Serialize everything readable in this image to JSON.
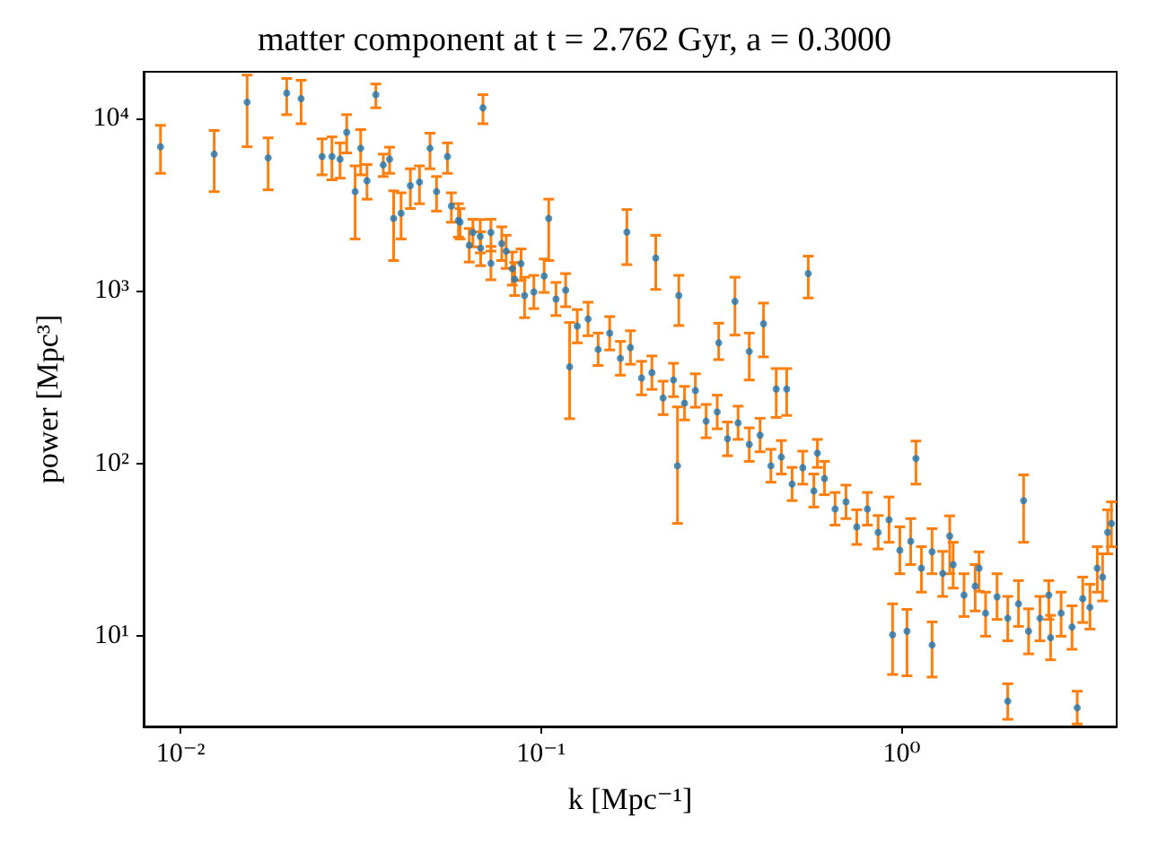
{
  "chart_data": {
    "type": "scatter",
    "title": "matter component at t = 2.762 Gyr, a = 0.3000",
    "xlabel": "k [Mpc⁻¹]",
    "ylabel": "power [Mpc³]",
    "log": "xy",
    "xlim": [
      0.0079,
      3.95
    ],
    "ylim": [
      3,
      18600
    ],
    "xticks": [
      {
        "value": 0.01,
        "label": "10⁻²"
      },
      {
        "value": 0.1,
        "label": "10⁻¹"
      },
      {
        "value": 1,
        "label": "10⁰"
      }
    ],
    "yticks": [
      {
        "value": 10,
        "label": "10¹"
      },
      {
        "value": 100,
        "label": "10²"
      },
      {
        "value": 1000,
        "label": "10³"
      },
      {
        "value": 10000,
        "label": "10⁴"
      }
    ],
    "series": [
      {
        "color": "#1f77b4",
        "x": [
          0.0088,
          0.0124,
          0.0153,
          0.0175,
          0.0197,
          0.0216,
          0.0247,
          0.0263,
          0.0277,
          0.0289,
          0.0305,
          0.0316,
          0.0329,
          0.0348,
          0.0365,
          0.038,
          0.039,
          0.0409,
          0.0434,
          0.046,
          0.0492,
          0.0513,
          0.055,
          0.0564,
          0.0596,
          0.0647,
          0.068,
          0.069,
          0.0726,
          0.08,
          0.088,
          0.09,
          0.105,
          0.12,
          0.173,
          0.208,
          0.239,
          0.241,
          0.311,
          0.345,
          0.378,
          0.414,
          0.449,
          0.48,
          0.551,
          0.584,
          0.944,
          1.035,
          1.096,
          1.215,
          1.36,
          1.64,
          1.97,
          2.18,
          2.56,
          3.07,
          0.059,
          0.0632,
          0.0678,
          0.0726,
          0.0778,
          0.0832,
          0.0845,
          0.0955,
          0.102,
          0.11,
          0.117,
          0.126,
          0.135,
          0.144,
          0.155,
          0.166,
          0.177,
          0.19,
          0.203,
          0.218,
          0.233,
          0.25,
          0.268,
          0.287,
          0.308,
          0.329,
          0.352,
          0.378,
          0.405,
          0.434,
          0.464,
          0.497,
          0.532,
          0.571,
          0.611,
          0.654,
          0.701,
          0.751,
          0.804,
          0.861,
          0.923,
          0.989,
          1.06,
          1.135,
          1.215,
          1.3,
          1.39,
          1.49,
          1.6,
          1.71,
          1.84,
          1.97,
          2.11,
          2.25,
          2.42,
          2.59,
          2.77,
          2.97,
          3.18,
          3.33,
          3.49,
          3.61,
          3.73,
          3.82
        ],
        "values": [
          6840,
          6200,
          12400,
          5900,
          14000,
          13000,
          6000,
          6000,
          5800,
          8300,
          3760,
          6700,
          4350,
          13700,
          5370,
          5800,
          2630,
          2820,
          4070,
          4270,
          6700,
          3760,
          6000,
          3100,
          2500,
          2180,
          1770,
          11500,
          2180,
          1700,
          1440,
          940,
          2630,
          363,
          2190,
          1550,
          97,
          940,
          500,
          870,
          446,
          645,
          270,
          270,
          1260,
          115,
          10.2,
          10.7,
          107,
          8.9,
          38,
          24.8,
          4.2,
          61,
          17.3,
          3.85,
          2560,
          1840,
          2070,
          1445,
          1880,
          1345,
          1170,
          986,
          1220,
          896,
          1010,
          625,
          688,
          458,
          569,
          407,
          470,
          313,
          336,
          240,
          305,
          224,
          265,
          176,
          199,
          139,
          172,
          129,
          146,
          97,
          109,
          76,
          94.7,
          69.4,
          82,
          54.6,
          60,
          43,
          54.6,
          40,
          47.3,
          31.5,
          35.5,
          24.8,
          30.8,
          23.1,
          26,
          17.3,
          19.5,
          13.6,
          16.9,
          12.7,
          15.4,
          10.7,
          12.7,
          9.8,
          13.6,
          11.3,
          16.5,
          14.7,
          24.8,
          22,
          40,
          45
        ],
        "errors": [
          [
            4800,
            9100
          ],
          [
            3760,
            8500
          ],
          [
            6840,
            17800
          ],
          [
            3850,
            7700
          ],
          [
            10500,
            17000
          ],
          [
            9300,
            16600
          ],
          [
            4700,
            7600
          ],
          [
            4400,
            7800
          ],
          [
            4500,
            7200
          ],
          [
            6300,
            10500
          ],
          [
            2000,
            5300
          ],
          [
            4700,
            8600
          ],
          [
            3400,
            5400
          ],
          [
            11500,
            15800
          ],
          [
            4600,
            6200
          ],
          [
            4800,
            6800
          ],
          [
            1500,
            3800
          ],
          [
            2000,
            3700
          ],
          [
            3000,
            5100
          ],
          [
            3200,
            5300
          ],
          [
            5100,
            8200
          ],
          [
            2900,
            4600
          ],
          [
            4800,
            7200
          ],
          [
            2500,
            3700
          ],
          [
            2000,
            3000
          ],
          [
            1800,
            2600
          ],
          [
            1400,
            2200
          ],
          [
            9300,
            13700
          ],
          [
            1700,
            2600
          ],
          [
            1350,
            2100
          ],
          [
            1150,
            1750
          ],
          [
            700,
            1200
          ],
          [
            1500,
            3400
          ],
          [
            182,
            656
          ],
          [
            1420,
            2960
          ],
          [
            1020,
            2100
          ],
          [
            45,
            213
          ],
          [
            630,
            1230
          ],
          [
            400,
            650
          ],
          [
            555,
            1200
          ],
          [
            305,
            570
          ],
          [
            415,
            850
          ],
          [
            185,
            355
          ],
          [
            190,
            355
          ],
          [
            910,
            1590
          ],
          [
            95,
            138
          ],
          [
            6,
            15.4
          ],
          [
            5.9,
            14.3
          ],
          [
            76,
            135
          ],
          [
            5.8,
            12.1
          ],
          [
            23,
            49.8
          ],
          [
            18.2,
            30.8
          ],
          [
            3.3,
            5.3
          ],
          [
            35,
            86
          ],
          [
            12.5,
            21
          ],
          [
            3.1,
            4.8
          ],
          [
            2050,
            3200
          ],
          [
            1470,
            2300
          ],
          [
            1660,
            2590
          ],
          [
            1160,
            1810
          ],
          [
            1500,
            2350
          ],
          [
            1080,
            1680
          ],
          [
            940,
            1460
          ],
          [
            790,
            1230
          ],
          [
            980,
            1530
          ],
          [
            720,
            1120
          ],
          [
            810,
            1260
          ],
          [
            500,
            780
          ],
          [
            550,
            860
          ],
          [
            370,
            570
          ],
          [
            455,
            710
          ],
          [
            325,
            510
          ],
          [
            376,
            588
          ],
          [
            250,
            391
          ],
          [
            269,
            420
          ],
          [
            192,
            300
          ],
          [
            244,
            381
          ],
          [
            179,
            280
          ],
          [
            212,
            331
          ],
          [
            141,
            220
          ],
          [
            159,
            249
          ],
          [
            111,
            174
          ],
          [
            138,
            215
          ],
          [
            103,
            161
          ],
          [
            117,
            183
          ],
          [
            78,
            121
          ],
          [
            87,
            136
          ],
          [
            61,
            95
          ],
          [
            76,
            118
          ],
          [
            56,
            87
          ],
          [
            66,
            103
          ],
          [
            44,
            68
          ],
          [
            48,
            75
          ],
          [
            34,
            54
          ],
          [
            44,
            68
          ],
          [
            32,
            50
          ],
          [
            35,
            64
          ],
          [
            23,
            43
          ],
          [
            26,
            48
          ],
          [
            18,
            33
          ],
          [
            23,
            42
          ],
          [
            17,
            31
          ],
          [
            19,
            35
          ],
          [
            13,
            23
          ],
          [
            14,
            26
          ],
          [
            10,
            18
          ],
          [
            12.5,
            23
          ],
          [
            9.4,
            17
          ],
          [
            11.4,
            21
          ],
          [
            7.9,
            14.4
          ],
          [
            9.4,
            17
          ],
          [
            7.3,
            13.2
          ],
          [
            10,
            18
          ],
          [
            8.4,
            15
          ],
          [
            12,
            22
          ],
          [
            11,
            20
          ],
          [
            18,
            33
          ],
          [
            16,
            30
          ],
          [
            30,
            54
          ],
          [
            33,
            60
          ]
        ]
      }
    ]
  }
}
